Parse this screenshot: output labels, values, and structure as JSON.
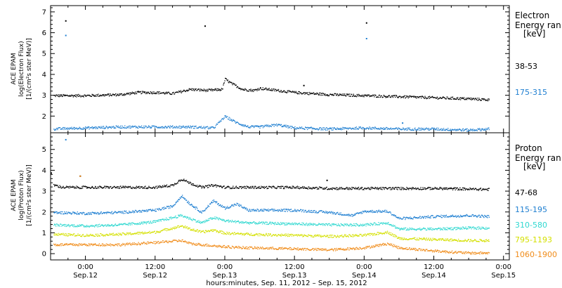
{
  "chart_data": [
    {
      "type": "scatter",
      "panel": "electron",
      "ylabel_lines": [
        "ACE EPAM",
        "log(Electron Flux)",
        "[1/(cm²s ster MeV)]"
      ],
      "ylim": [
        1.2,
        7.3
      ],
      "yticks": [
        "2",
        "3",
        "4",
        "5",
        "6",
        "7"
      ],
      "legend_title": [
        "Electron",
        "Energy ran",
        "[keV]"
      ],
      "x_hours": [
        -6,
        0,
        12,
        24,
        36,
        48,
        60,
        72
      ],
      "series": [
        {
          "name": "38-53",
          "color": "#000000",
          "points": [
            [
              -6,
              3.0
            ],
            [
              0,
              3.0
            ],
            [
              6,
              3.05
            ],
            [
              9,
              3.15
            ],
            [
              12,
              3.15
            ],
            [
              15,
              3.1
            ],
            [
              18,
              3.3
            ],
            [
              21,
              3.25
            ],
            [
              23.5,
              3.3
            ],
            [
              24,
              3.8
            ],
            [
              25,
              3.6
            ],
            [
              27,
              3.3
            ],
            [
              29,
              3.25
            ],
            [
              30,
              3.35
            ],
            [
              33,
              3.25
            ],
            [
              36,
              3.15
            ],
            [
              42,
              3.05
            ],
            [
              48,
              3.0
            ],
            [
              54,
              2.95
            ],
            [
              60,
              2.9
            ],
            [
              66,
              2.85
            ],
            [
              69.5,
              2.8
            ]
          ],
          "outliers": [
            [
              -3.5,
              6.6
            ],
            [
              20.5,
              6.35
            ],
            [
              37.5,
              3.5
            ],
            [
              48.3,
              6.5
            ]
          ]
        },
        {
          "name": "175-315",
          "color": "#1f7fd1",
          "points": [
            [
              -6,
              1.4
            ],
            [
              0,
              1.45
            ],
            [
              6,
              1.5
            ],
            [
              12,
              1.5
            ],
            [
              18,
              1.5
            ],
            [
              22,
              1.45
            ],
            [
              24,
              2.0
            ],
            [
              26,
              1.7
            ],
            [
              28,
              1.5
            ],
            [
              30,
              1.5
            ],
            [
              33,
              1.6
            ],
            [
              36,
              1.45
            ],
            [
              42,
              1.4
            ],
            [
              48,
              1.45
            ],
            [
              54,
              1.4
            ],
            [
              60,
              1.4
            ],
            [
              66,
              1.35
            ],
            [
              69.5,
              1.4
            ]
          ],
          "outliers": [
            [
              -3.5,
              5.9
            ],
            [
              48.3,
              5.75
            ],
            [
              54.5,
              1.7
            ]
          ]
        }
      ]
    },
    {
      "type": "scatter",
      "panel": "proton",
      "ylabel_lines": [
        "ACE EPAM",
        "log(Proton Flux)",
        "[1/(cm²s ster MeV)]"
      ],
      "ylim": [
        -0.3,
        5.8
      ],
      "yticks": [
        "0",
        "1",
        "2",
        "3",
        "4",
        "5"
      ],
      "legend_title": [
        "Proton",
        "Energy ran",
        "[keV]"
      ],
      "x_hours": [
        -6,
        0,
        12,
        24,
        36,
        48,
        60,
        72
      ],
      "series": [
        {
          "name": "47-68",
          "color": "#000000",
          "points": [
            [
              -6,
              3.35
            ],
            [
              -4,
              3.2
            ],
            [
              0,
              3.2
            ],
            [
              6,
              3.2
            ],
            [
              12,
              3.2
            ],
            [
              15,
              3.3
            ],
            [
              16.5,
              3.6
            ],
            [
              18,
              3.4
            ],
            [
              20,
              3.2
            ],
            [
              22,
              3.3
            ],
            [
              24,
              3.2
            ],
            [
              28,
              3.2
            ],
            [
              36,
              3.2
            ],
            [
              42,
              3.15
            ],
            [
              48,
              3.15
            ],
            [
              54,
              3.15
            ],
            [
              60,
              3.15
            ],
            [
              69.5,
              3.1
            ]
          ],
          "outliers": [
            [
              -6,
              3.9
            ],
            [
              -1,
              3.75
            ],
            [
              41.5,
              3.55
            ]
          ]
        },
        {
          "name": "115-195",
          "color": "#1f7fd1",
          "points": [
            [
              -6,
              2.0
            ],
            [
              0,
              1.95
            ],
            [
              6,
              2.0
            ],
            [
              12,
              2.1
            ],
            [
              15,
              2.3
            ],
            [
              16.5,
              2.8
            ],
            [
              18,
              2.4
            ],
            [
              20,
              2.0
            ],
            [
              22,
              2.55
            ],
            [
              24,
              2.2
            ],
            [
              26,
              2.4
            ],
            [
              28,
              2.1
            ],
            [
              33,
              2.1
            ],
            [
              36,
              2.1
            ],
            [
              42,
              2.0
            ],
            [
              46,
              1.85
            ],
            [
              48,
              2.05
            ],
            [
              52,
              2.05
            ],
            [
              54,
              1.7
            ],
            [
              60,
              1.8
            ],
            [
              66,
              1.85
            ],
            [
              69.5,
              1.8
            ]
          ],
          "outliers": [
            [
              -3.5,
              5.5
            ]
          ]
        },
        {
          "name": "310-580",
          "color": "#2fd8d0",
          "points": [
            [
              -6,
              1.4
            ],
            [
              0,
              1.35
            ],
            [
              6,
              1.4
            ],
            [
              12,
              1.55
            ],
            [
              16.5,
              1.85
            ],
            [
              18,
              1.7
            ],
            [
              20,
              1.5
            ],
            [
              22,
              1.75
            ],
            [
              24,
              1.6
            ],
            [
              26,
              1.55
            ],
            [
              28,
              1.5
            ],
            [
              36,
              1.45
            ],
            [
              42,
              1.4
            ],
            [
              48,
              1.4
            ],
            [
              52,
              1.5
            ],
            [
              54,
              1.2
            ],
            [
              60,
              1.2
            ],
            [
              66,
              1.25
            ],
            [
              69.5,
              1.25
            ]
          ],
          "outliers": []
        },
        {
          "name": "795-1193",
          "color": "#d4e000",
          "points": [
            [
              -6,
              0.95
            ],
            [
              0,
              0.9
            ],
            [
              6,
              0.95
            ],
            [
              12,
              1.05
            ],
            [
              16.5,
              1.35
            ],
            [
              18,
              1.2
            ],
            [
              20,
              1.05
            ],
            [
              22,
              1.15
            ],
            [
              24,
              1.0
            ],
            [
              28,
              0.95
            ],
            [
              36,
              0.9
            ],
            [
              42,
              0.85
            ],
            [
              48,
              0.9
            ],
            [
              52,
              1.05
            ],
            [
              54,
              0.75
            ],
            [
              60,
              0.7
            ],
            [
              66,
              0.65
            ],
            [
              69.5,
              0.65
            ]
          ],
          "outliers": []
        },
        {
          "name": "1060-1900",
          "color": "#f08c1a",
          "points": [
            [
              -6,
              0.45
            ],
            [
              0,
              0.45
            ],
            [
              6,
              0.45
            ],
            [
              12,
              0.55
            ],
            [
              16.5,
              0.65
            ],
            [
              18,
              0.5
            ],
            [
              20,
              0.45
            ],
            [
              22,
              0.4
            ],
            [
              24,
              0.35
            ],
            [
              28,
              0.3
            ],
            [
              36,
              0.25
            ],
            [
              42,
              0.2
            ],
            [
              48,
              0.3
            ],
            [
              52,
              0.5
            ],
            [
              54,
              0.3
            ],
            [
              60,
              0.15
            ],
            [
              66,
              0.05
            ],
            [
              69.5,
              0.05
            ]
          ],
          "outliers": [
            [
              -1,
              3.75
            ]
          ]
        }
      ]
    }
  ],
  "x_axis": {
    "tick_labels_top": [
      "0:00",
      "12:00",
      "0:00",
      "12:00",
      "0:00",
      "12:00",
      "0:00"
    ],
    "tick_labels_bottom": [
      "Sep.12",
      "Sep.12",
      "Sep.13",
      "Sep.13",
      "Sep.14",
      "Sep.14",
      "Sep.15"
    ],
    "tick_hours": [
      0,
      12,
      24,
      36,
      48,
      60,
      72
    ],
    "range_hours": [
      -6,
      73
    ],
    "title": "hours:minutes, Sep. 11, 2012 – Sep. 15, 2012"
  }
}
